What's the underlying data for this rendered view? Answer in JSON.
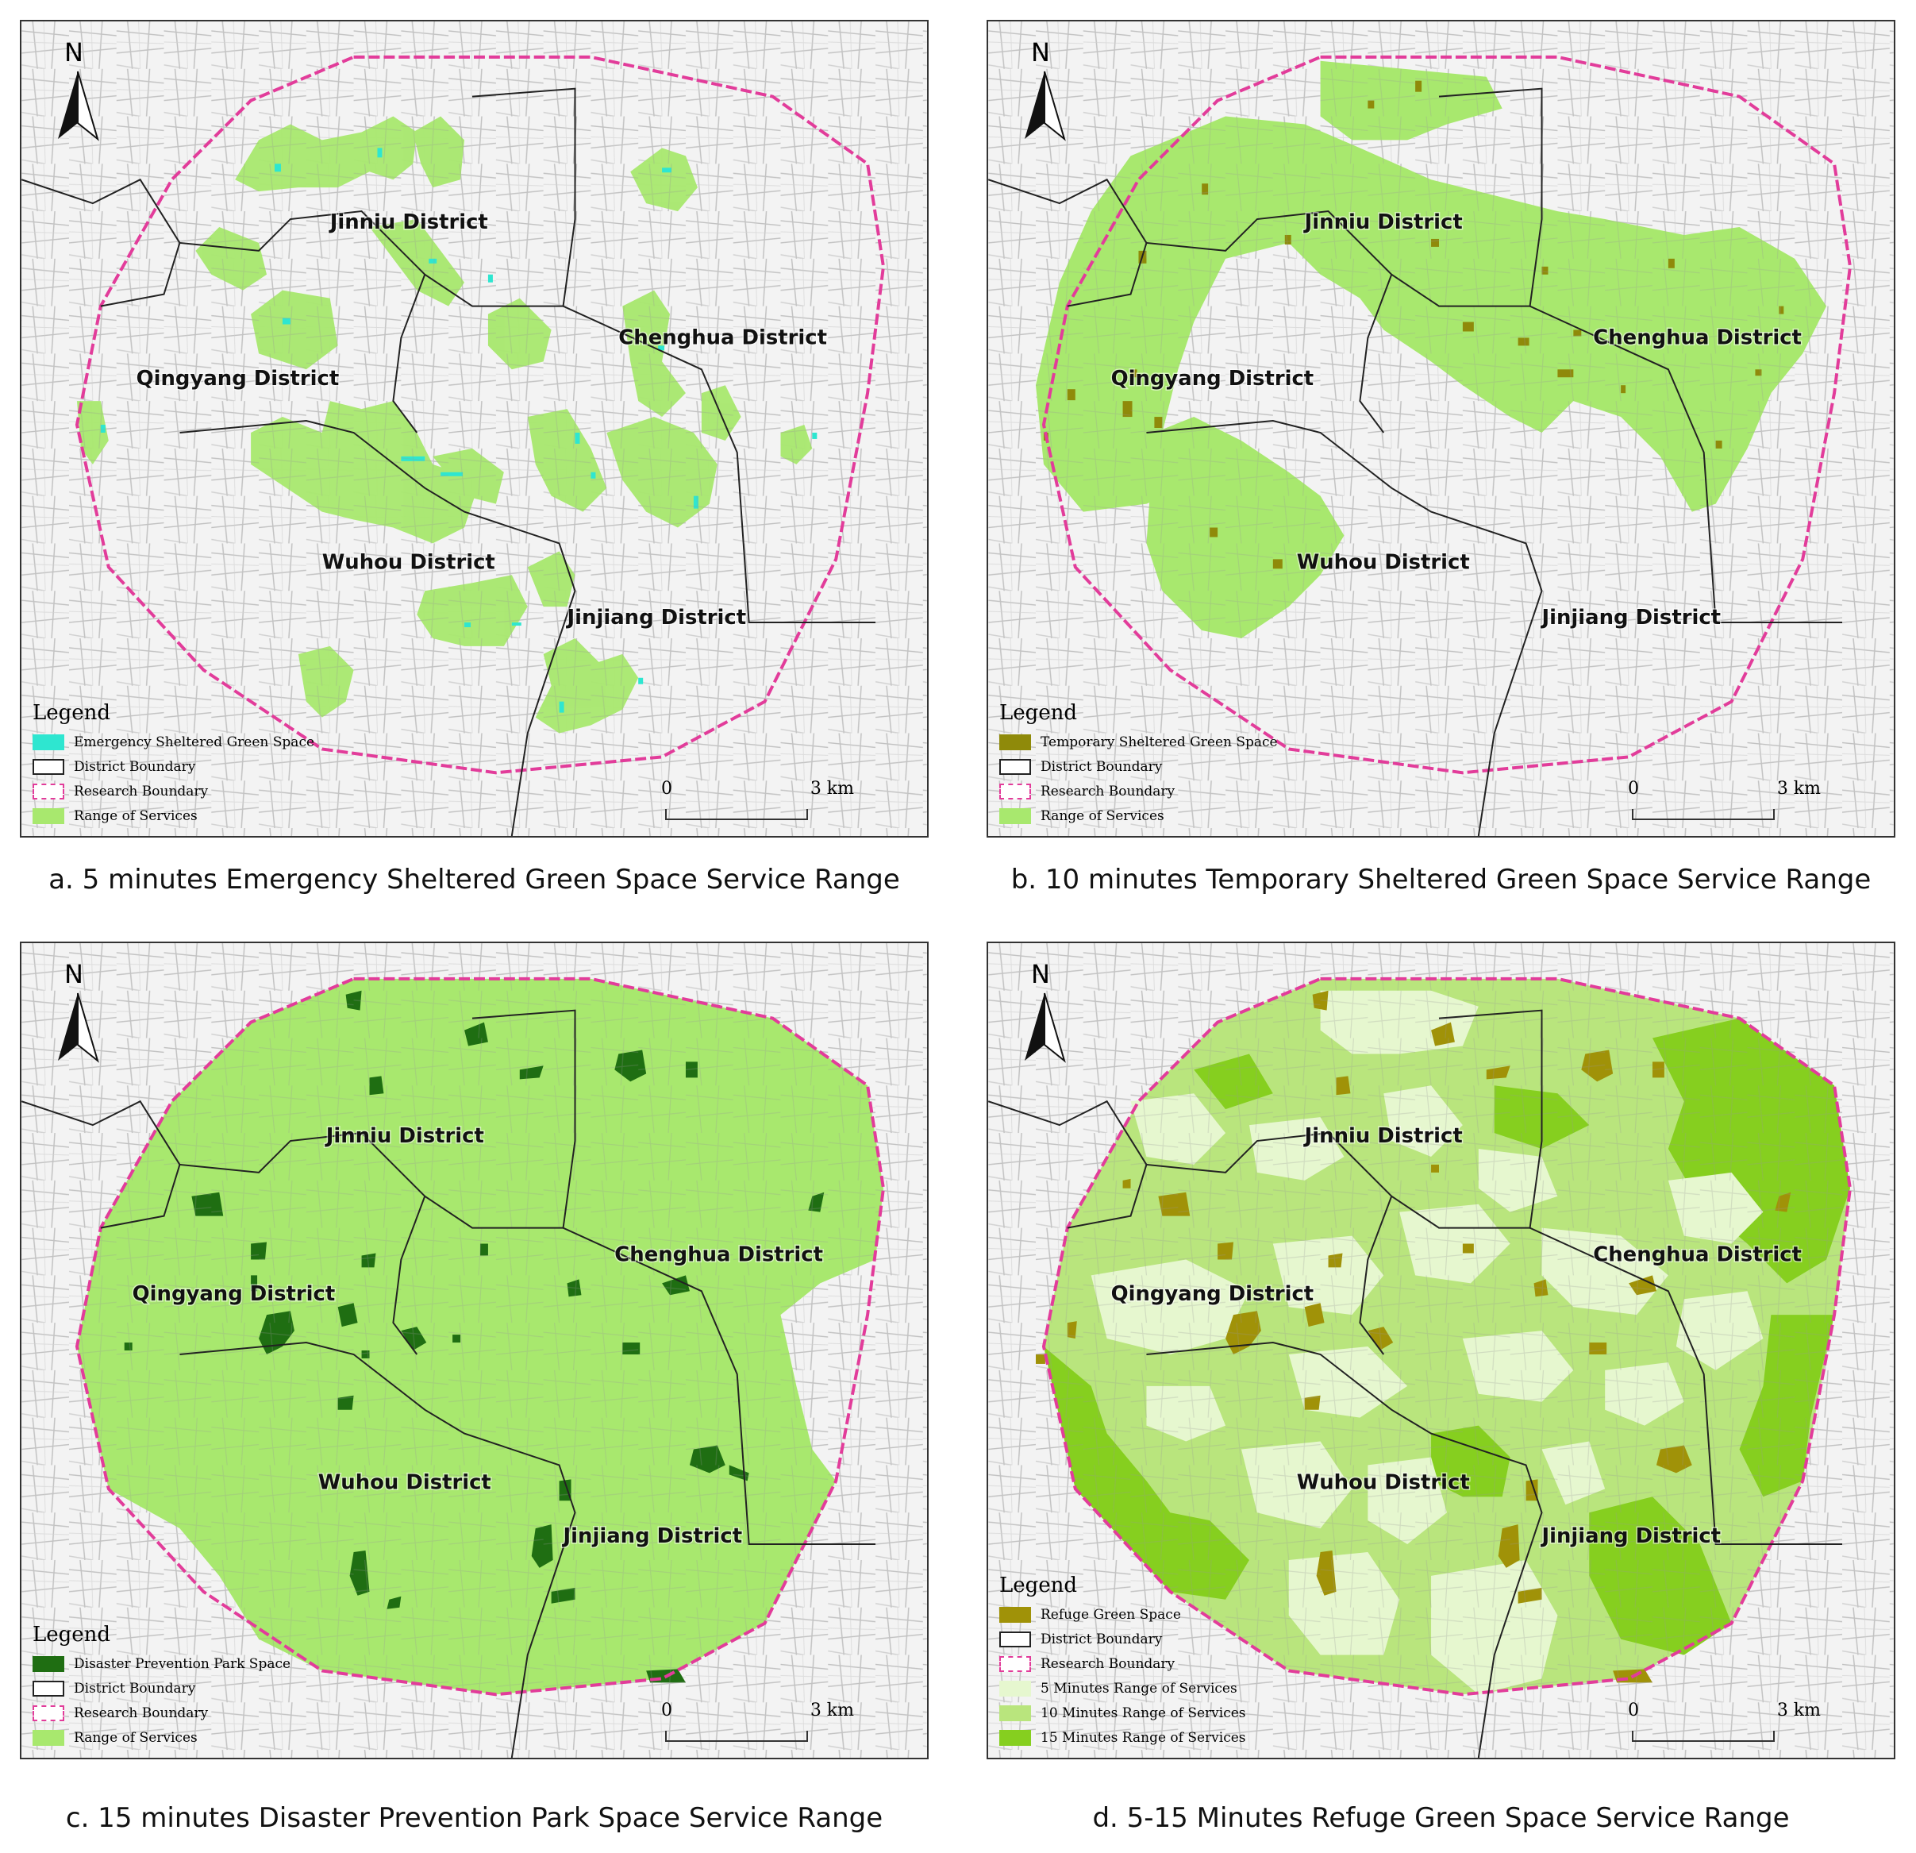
{
  "north_label": "N",
  "districts": {
    "jinniu": "Jinniu District",
    "chenghua": "Chenghua District",
    "qingyang": "Qingyang District",
    "wuhou": "Wuhou District",
    "jinjiang": "Jinjiang District"
  },
  "scale": {
    "zero": "0",
    "distance": "3 km"
  },
  "legend_title": "Legend",
  "colors": {
    "range": "#a8e86e",
    "emergency": "#2ee6d0",
    "temporary": "#8f8a0a",
    "park": "#1f6e12",
    "refuge": "#a09208",
    "five_min": "#e6f7cf",
    "ten_min": "#b9e57d",
    "fifteen_min": "#86cf1f",
    "research_boundary": "#e23c9a",
    "district_boundary": "#222222"
  },
  "panels": [
    {
      "caption": "a. 5 minutes Emergency Sheltered Green Space Service Range",
      "legend": [
        "Emergency Sheltered Green Space",
        "District Boundary",
        "Research Boundary",
        "Range of Services"
      ]
    },
    {
      "caption": "b. 10 minutes Temporary Sheltered Green Space Service Range",
      "legend": [
        "Temporary Sheltered Green Space",
        "District Boundary",
        "Research Boundary",
        "Range of Services"
      ]
    },
    {
      "caption": "c. 15 minutes Disaster Prevention Park Space Service Range",
      "legend": [
        "Disaster Prevention Park Space",
        "District Boundary",
        "Research Boundary",
        "Range of Services"
      ]
    },
    {
      "caption": "d. 5-15 Minutes Refuge Green Space Service Range",
      "legend": [
        "Refuge Green Space",
        "District Boundary",
        "Research Boundary",
        "5 Minutes Range of Services",
        "10 Minutes Range of Services",
        "15 Minutes Range of Services"
      ]
    }
  ]
}
